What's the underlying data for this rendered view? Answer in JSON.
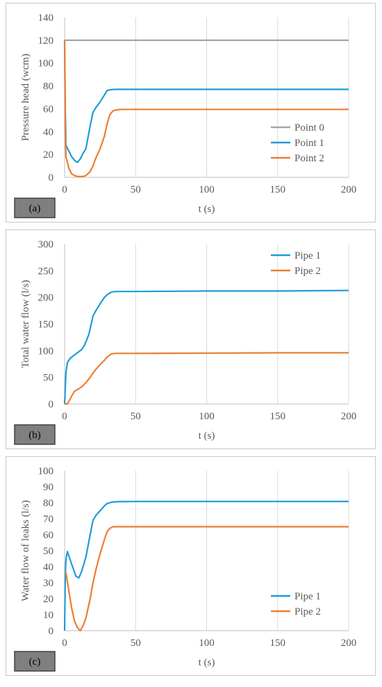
{
  "chart_data": [
    {
      "type": "line",
      "panel_tag": "(a)",
      "xlabel": "t (s)",
      "ylabel": "Pressure head (wcm)",
      "xlim": [
        0,
        200
      ],
      "ylim": [
        0,
        140
      ],
      "xticks": [
        0,
        50,
        100,
        150,
        200
      ],
      "yticks": [
        0,
        20,
        40,
        60,
        80,
        100,
        120,
        140
      ],
      "grid": "vertical",
      "legend_position": "bottom-right",
      "series": [
        {
          "name": "Point 0",
          "color": "#a5a5a5",
          "x": [
            0,
            200
          ],
          "y": [
            120,
            120
          ]
        },
        {
          "name": "Point 1",
          "color": "#1f9bd7",
          "x": [
            0,
            0.5,
            1,
            3,
            5,
            7,
            9,
            11,
            13,
            15,
            18,
            20,
            22,
            25,
            28,
            30,
            33,
            36,
            40,
            50,
            100,
            150,
            200
          ],
          "y": [
            120,
            60,
            28,
            23,
            18,
            15,
            13,
            16,
            21,
            25,
            45,
            57,
            61,
            66,
            72,
            76,
            76.8,
            77,
            77,
            77,
            77,
            77,
            77
          ]
        },
        {
          "name": "Point 2",
          "color": "#ed7d31",
          "x": [
            0,
            0.5,
            1,
            3,
            5,
            7,
            9,
            11,
            13,
            15,
            18,
            20,
            22,
            25,
            28,
            30,
            32,
            34,
            36,
            40,
            50,
            100,
            150,
            200
          ],
          "y": [
            120,
            40,
            18,
            8,
            3,
            1.5,
            0.8,
            0.7,
            0.8,
            1.5,
            5,
            10,
            17,
            25,
            36,
            47,
            55,
            58,
            59,
            59.5,
            59.5,
            59.5,
            59.5,
            59.5
          ]
        }
      ]
    },
    {
      "type": "line",
      "panel_tag": "(b)",
      "xlabel": "t (s)",
      "ylabel": "Total water flow (l/s)",
      "xlim": [
        0,
        200
      ],
      "ylim": [
        0,
        300
      ],
      "xticks": [
        0,
        50,
        100,
        150,
        200
      ],
      "yticks": [
        0,
        50,
        100,
        150,
        200,
        250,
        300
      ],
      "grid": "vertical",
      "legend_position": "top-right",
      "series": [
        {
          "name": "Pipe 1",
          "color": "#1f9bd7",
          "x": [
            0,
            1,
            2,
            4,
            6,
            8,
            10,
            12,
            14,
            17,
            20,
            22,
            25,
            28,
            30,
            33,
            36,
            40,
            50,
            100,
            150,
            200
          ],
          "y": [
            0,
            60,
            78,
            86,
            90,
            94,
            98,
            102,
            110,
            130,
            165,
            175,
            188,
            200,
            205,
            210,
            211,
            211,
            211,
            212,
            212,
            213
          ]
        },
        {
          "name": "Pipe 2",
          "color": "#ed7d31",
          "x": [
            0,
            2,
            3,
            5,
            7,
            9,
            12,
            15,
            18,
            20,
            22,
            25,
            28,
            30,
            33,
            36,
            40,
            50,
            100,
            150,
            200
          ],
          "y": [
            0,
            0,
            5,
            15,
            24,
            27,
            32,
            40,
            50,
            58,
            65,
            74,
            82,
            88,
            94,
            95,
            95,
            95,
            95.5,
            96,
            96
          ]
        }
      ]
    },
    {
      "type": "line",
      "panel_tag": "(c)",
      "xlabel": "t (s)",
      "ylabel": "Water flow of leaks (l/s)",
      "xlim": [
        0,
        200
      ],
      "ylim": [
        0,
        100
      ],
      "xticks": [
        0,
        50,
        100,
        150,
        200
      ],
      "yticks": [
        0,
        10,
        20,
        30,
        40,
        50,
        60,
        70,
        80,
        90,
        100
      ],
      "grid": "vertical",
      "legend_position": "bottom-right",
      "series": [
        {
          "name": "Pipe 1",
          "color": "#1f9bd7",
          "x": [
            0,
            0.5,
            1,
            2,
            4,
            6,
            8,
            10,
            12,
            15,
            18,
            20,
            22,
            25,
            28,
            30,
            33,
            36,
            40,
            50,
            100,
            150,
            200
          ],
          "y": [
            0,
            35,
            45,
            49.5,
            44,
            39,
            34,
            33,
            37,
            46,
            60,
            69,
            72,
            75,
            78,
            79.5,
            80.3,
            80.6,
            80.7,
            80.8,
            80.8,
            80.8,
            80.8
          ]
        },
        {
          "name": "Pipe 2",
          "color": "#ed7d31",
          "x": [
            0,
            1,
            3,
            5,
            7,
            9,
            11,
            13,
            15,
            18,
            20,
            22,
            25,
            28,
            30,
            32,
            34,
            36,
            40,
            50,
            100,
            150,
            200
          ],
          "y": [
            36,
            36,
            25,
            14,
            6,
            2,
            0,
            3,
            8,
            20,
            30,
            38,
            48,
            57,
            62,
            64,
            65,
            65,
            65,
            65,
            65,
            65,
            65
          ]
        }
      ]
    }
  ]
}
